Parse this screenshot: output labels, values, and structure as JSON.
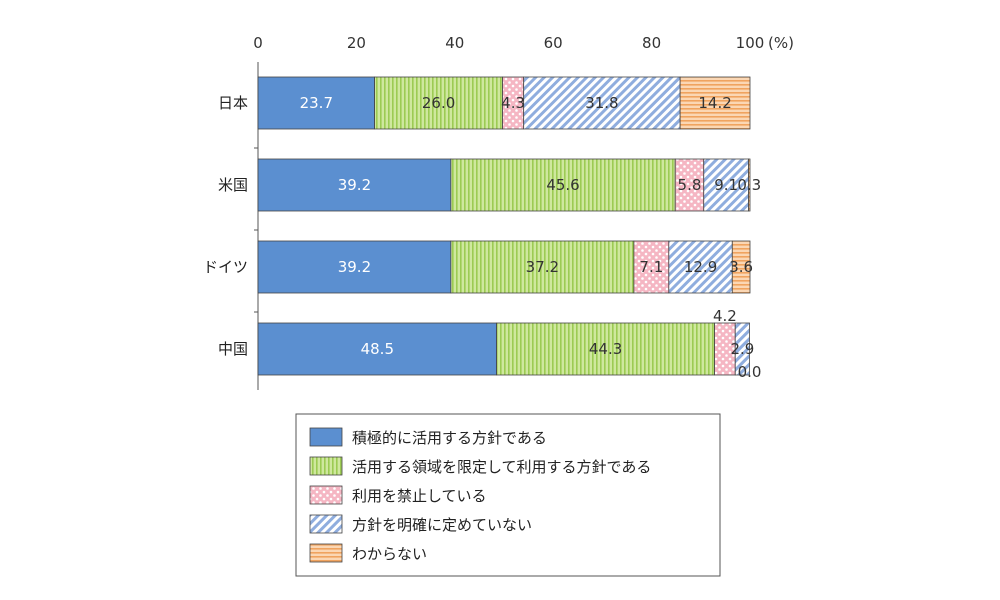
{
  "chart_data": {
    "type": "bar",
    "orientation": "horizontal",
    "stacked": true,
    "unit_label": "(%)",
    "xlim": [
      0,
      100
    ],
    "xticks": [
      "0",
      "20",
      "40",
      "60",
      "80",
      "100"
    ],
    "categories": [
      "日本",
      "米国",
      "ドイツ",
      "中国"
    ],
    "series": [
      {
        "name": "積極的に活用する方針である",
        "values": [
          23.7,
          39.2,
          39.2,
          48.5
        ],
        "labels": [
          "23.7",
          "39.2",
          "39.2",
          "48.5"
        ],
        "color": "#5b8fd0",
        "pattern": "solid"
      },
      {
        "name": "活用する領域を限定して利用する方針である",
        "values": [
          26.0,
          45.6,
          37.2,
          44.3
        ],
        "labels": [
          "26.0",
          "45.6",
          "37.2",
          "44.3"
        ],
        "color": "#b9dc79",
        "pattern": "vertical-stripes"
      },
      {
        "name": "利用を禁止している",
        "values": [
          4.3,
          5.8,
          7.1,
          4.2
        ],
        "labels": [
          "4.3",
          "5.8",
          "7.1",
          "4.2"
        ],
        "color": "#f4b8c4",
        "pattern": "dots"
      },
      {
        "name": "方針を明確に定めていない",
        "values": [
          31.8,
          9.1,
          12.9,
          2.9
        ],
        "labels": [
          "31.8",
          "9.1",
          "12.9",
          "2.9"
        ],
        "color": "#9ab4e0",
        "pattern": "diagonal-stripes"
      },
      {
        "name": "わからない",
        "values": [
          14.2,
          0.3,
          3.6,
          0.0
        ],
        "labels": [
          "14.2",
          "0.3",
          "3.6",
          "0.0"
        ],
        "color": "#f5be8c",
        "pattern": "horizontal-stripes"
      }
    ],
    "legend_position": "bottom",
    "grid": false
  }
}
